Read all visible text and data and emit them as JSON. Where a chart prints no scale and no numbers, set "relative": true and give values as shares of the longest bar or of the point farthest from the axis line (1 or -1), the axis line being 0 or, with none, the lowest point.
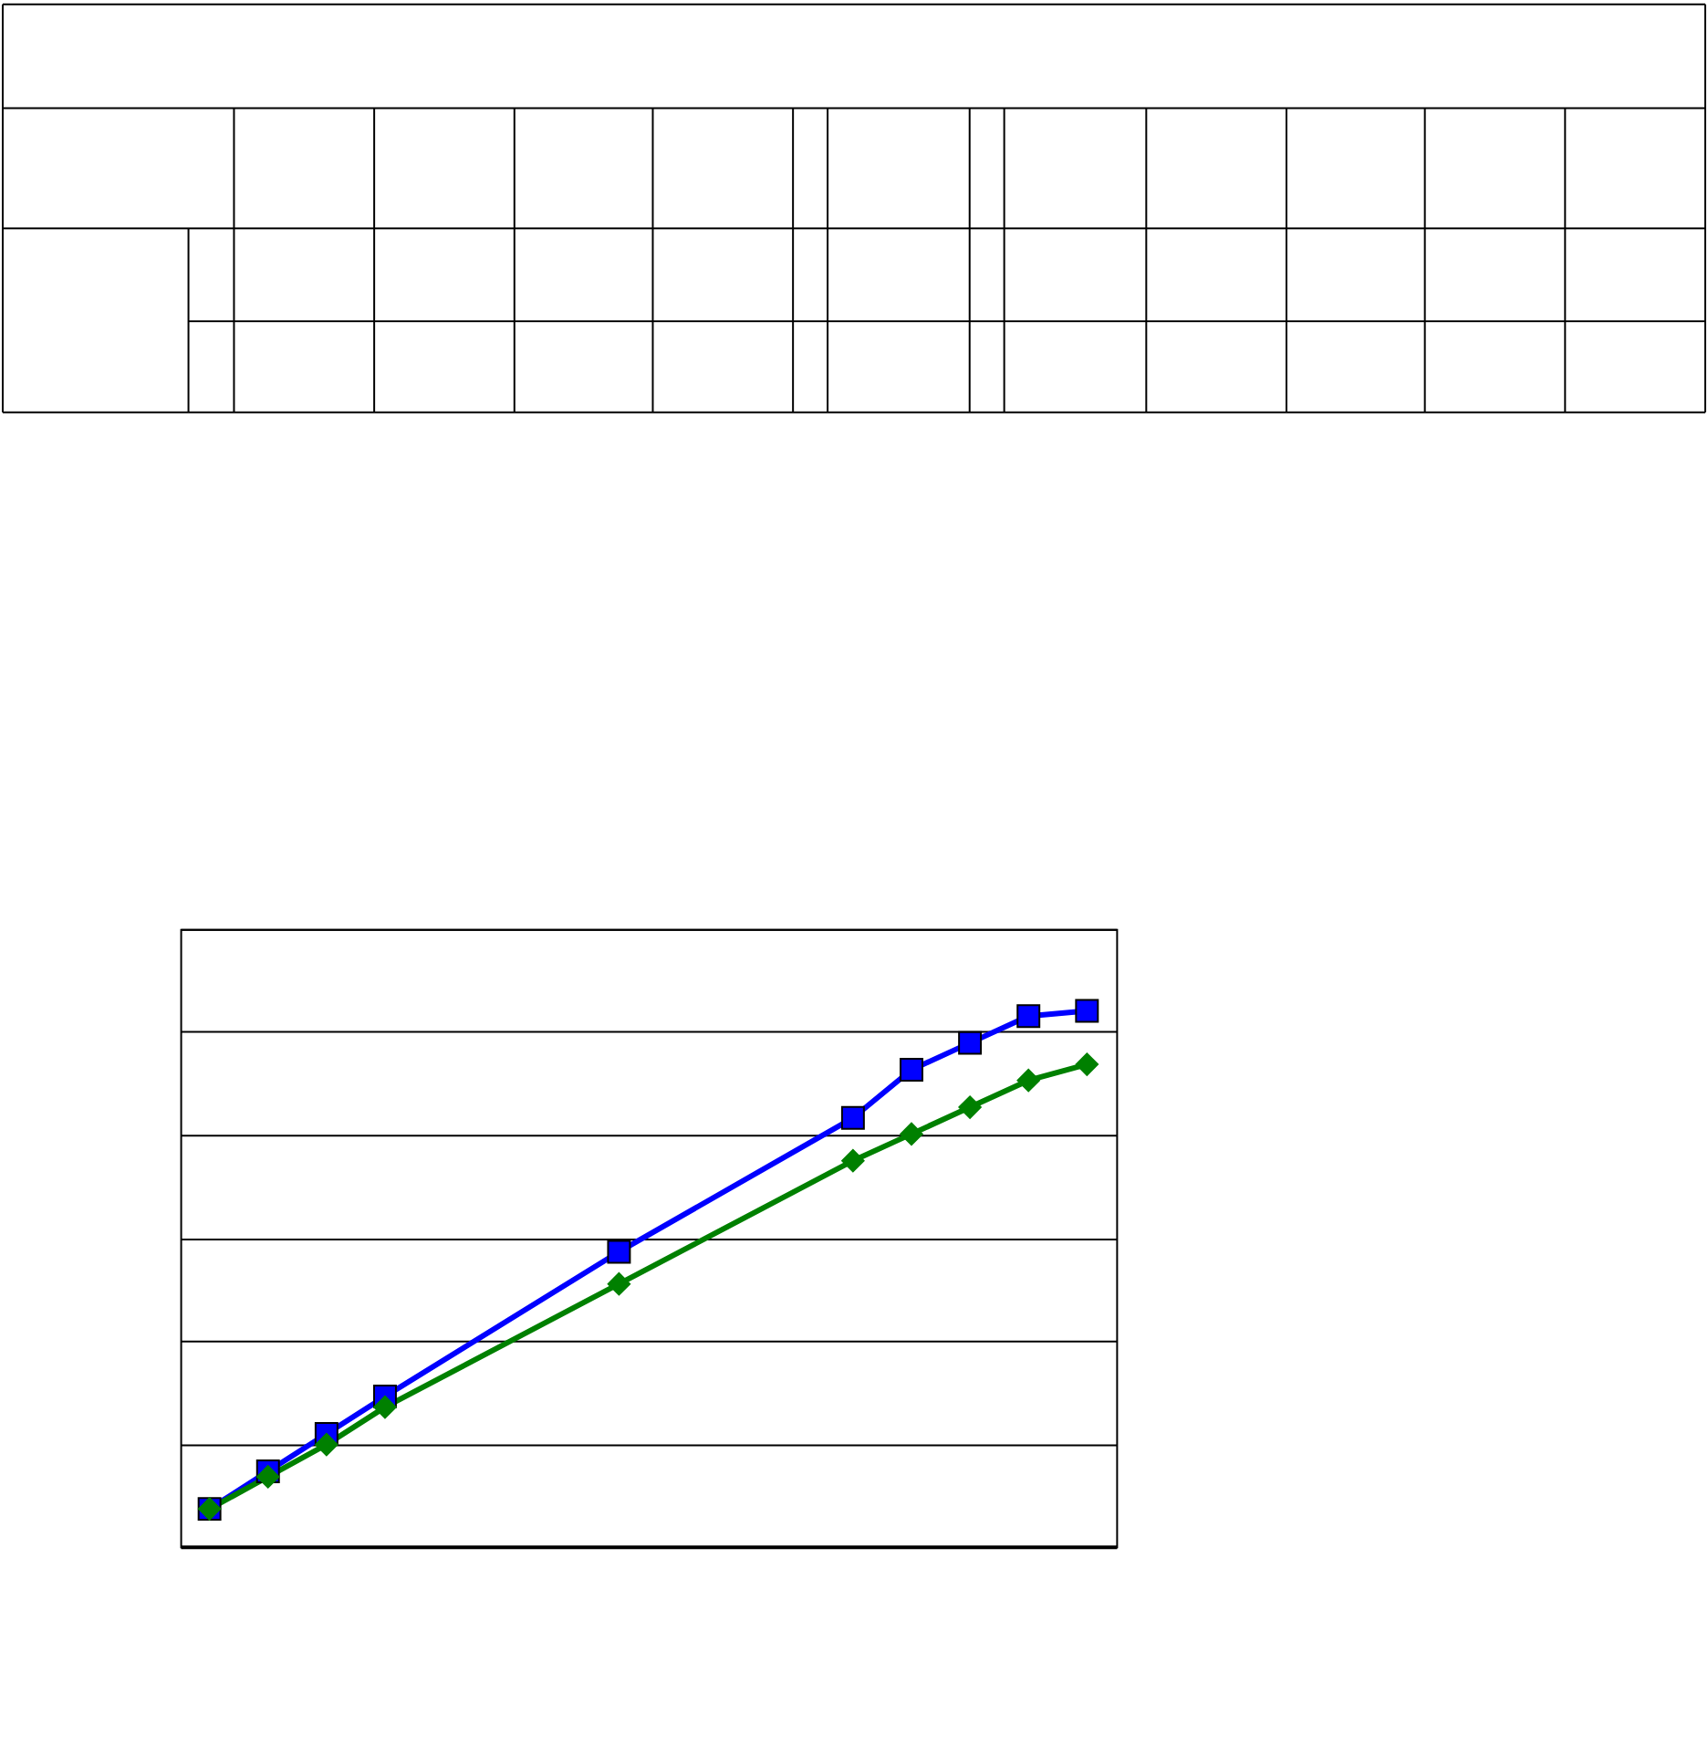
{
  "chart_data": {
    "type": "line",
    "relative": true,
    "categories": [
      null,
      null,
      null,
      null,
      null,
      null,
      null,
      null,
      null,
      null,
      null,
      null,
      null,
      null,
      null,
      null
    ],
    "series": [
      {
        "color": "#0000ff",
        "marker": "square",
        "values": [
          0.07,
          0.14,
          0.21,
          0.28,
          null,
          null,
          null,
          0.55,
          null,
          null,
          null,
          0.8,
          0.89,
          0.94,
          0.99,
          1
        ]
      },
      {
        "color": "#008000",
        "marker": "diamond",
        "values": [
          0.07,
          0.13,
          0.19,
          0.26,
          null,
          null,
          null,
          0.49,
          null,
          null,
          null,
          0.72,
          0.77,
          0.82,
          0.87,
          0.9
        ]
      }
    ],
    "grid": "y",
    "line_style": "solid"
  }
}
